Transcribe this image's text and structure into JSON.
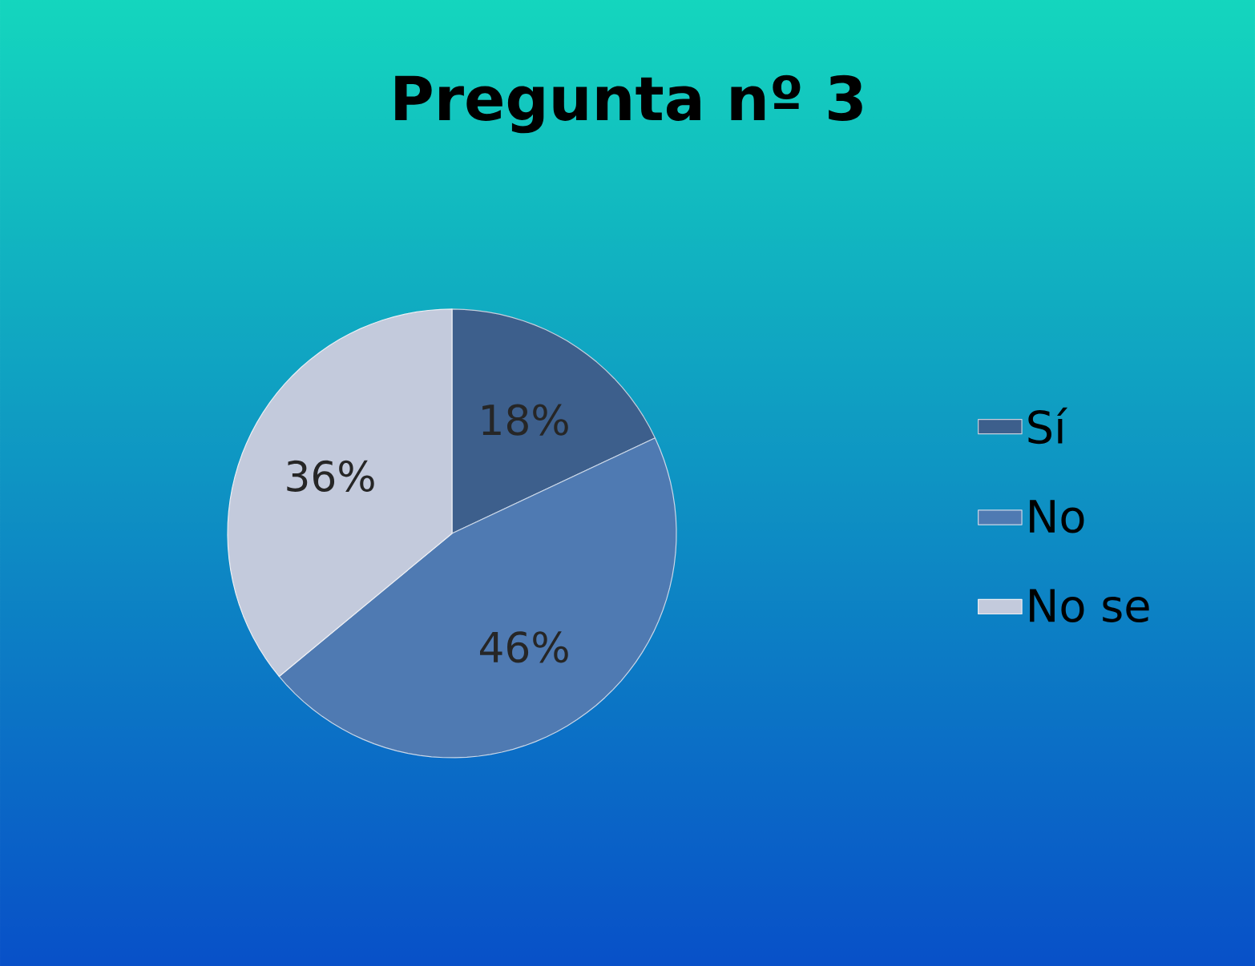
{
  "chart_data": {
    "type": "pie",
    "title": "Pregunta nº 3",
    "categories": [
      "Sí",
      "No",
      "No se"
    ],
    "values": [
      18,
      46,
      36
    ],
    "value_labels": [
      "18%",
      "46%",
      "36%"
    ],
    "colors": [
      "#3d5f8c",
      "#4f7ab2",
      "#c3cadc"
    ],
    "legend": "right"
  }
}
